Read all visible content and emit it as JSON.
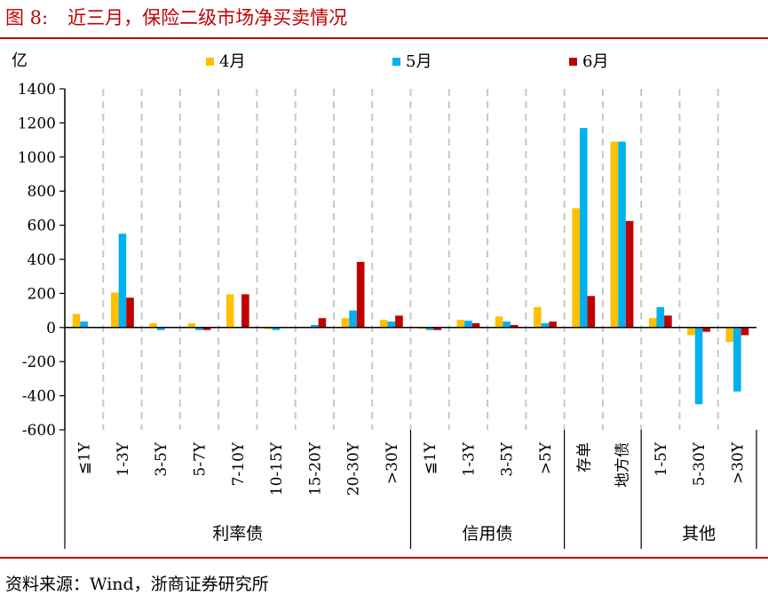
{
  "figure": {
    "number": "图 8:",
    "title": "近三月，保险二级市场净买卖情况",
    "source": "资料来源：Wind，浙商证券研究所"
  },
  "chart_data": {
    "type": "bar",
    "ylabel": "亿",
    "ylim": [
      -600,
      1400
    ],
    "yticks": [
      1400,
      1200,
      1000,
      800,
      600,
      400,
      200,
      0,
      -200,
      -400,
      -600
    ],
    "grid": "vertical dashed separators between categories",
    "legend_position": "top",
    "categories": [
      "≦1Y",
      "1-3Y",
      "3-5Y",
      "5-7Y",
      "7-10Y",
      "10-15Y",
      "15-20Y",
      "20-30Y",
      ">30Y",
      "≦1Y",
      "1-3Y",
      "3-5Y",
      ">5Y",
      "存单",
      "地方债",
      "1-5Y",
      "5-30Y",
      ">30Y"
    ],
    "groups": [
      {
        "label": "利率债",
        "count": 9
      },
      {
        "label": "信用债",
        "count": 4
      },
      {
        "label": "",
        "count": 2
      },
      {
        "label": "其他",
        "count": 3
      }
    ],
    "series": [
      {
        "name": "4月",
        "color": "#ffc000",
        "values": [
          80,
          205,
          25,
          25,
          195,
          -10,
          5,
          55,
          45,
          -5,
          45,
          65,
          120,
          700,
          1090,
          55,
          -45,
          -85
        ]
      },
      {
        "name": "5月",
        "color": "#00b0f0",
        "values": [
          35,
          550,
          -15,
          -15,
          0,
          -15,
          15,
          100,
          35,
          -15,
          40,
          35,
          25,
          1170,
          1090,
          120,
          -450,
          -375
        ]
      },
      {
        "name": "6月",
        "color": "#c00000",
        "values": [
          0,
          175,
          0,
          -15,
          195,
          0,
          55,
          385,
          70,
          -15,
          25,
          15,
          35,
          185,
          625,
          70,
          -25,
          -45
        ]
      }
    ]
  }
}
